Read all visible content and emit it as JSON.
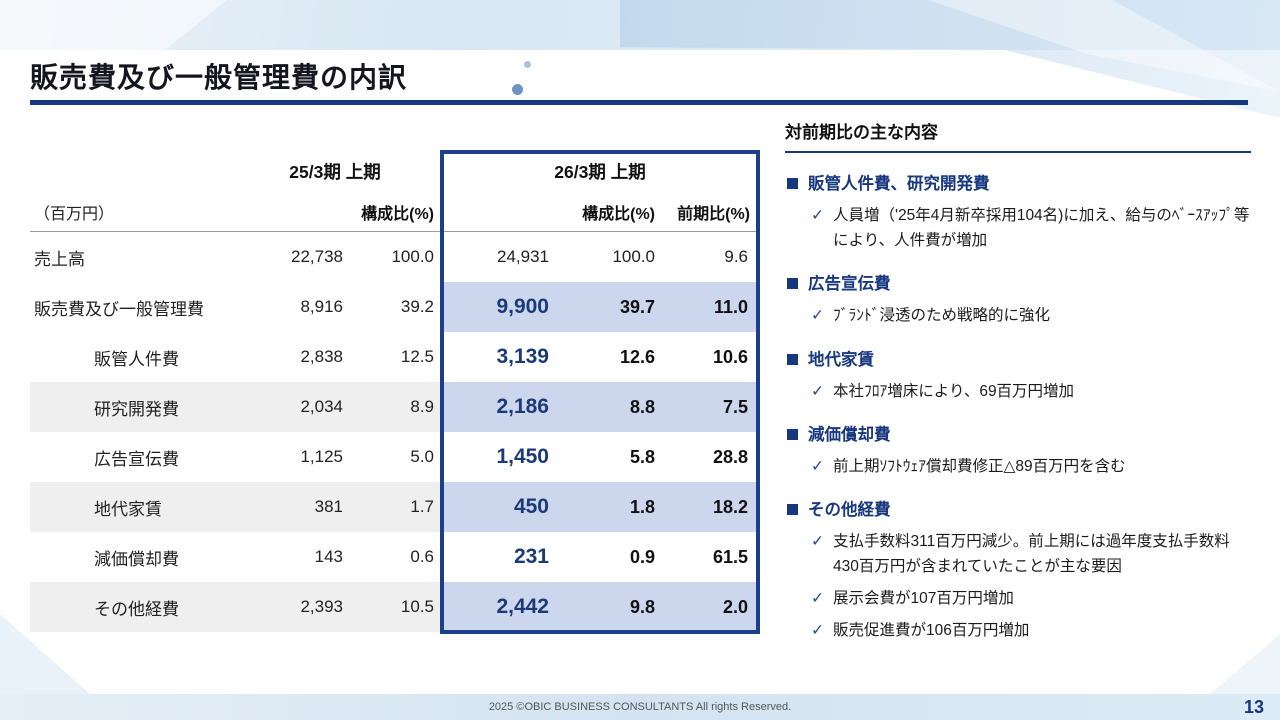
{
  "slide": {
    "title": "販売費及び一般管理費の内訳",
    "page_number": "13",
    "footer": "2025 ©OBIC BUSINESS CONSULTANTS All rights Reserved."
  },
  "colors": {
    "accent_navy": "#17377e",
    "box_border": "#1d3f8a",
    "highlight_blue": "#ccd6ec",
    "shade_gray": "#efefef"
  },
  "icons": {
    "check": "✓"
  },
  "table": {
    "unit_label": "（百万円）",
    "groups": {
      "prev": "25/3期 上期",
      "curr": "26/3期 上期"
    },
    "headers": {
      "comp_prev": "構成比(%)",
      "comp_curr": "構成比(%)",
      "yoy": "前期比(%)"
    },
    "rows": [
      {
        "label": "売上高",
        "prev": "22,738",
        "prev_comp": "100.0",
        "curr": "24,931",
        "curr_comp": "100.0",
        "yoy": "9.6"
      },
      {
        "label": "販売費及び一般管理費",
        "prev": "8,916",
        "prev_comp": "39.2",
        "curr": "9,900",
        "curr_comp": "39.7",
        "yoy": "11.0"
      },
      {
        "label": "販管人件費",
        "prev": "2,838",
        "prev_comp": "12.5",
        "curr": "3,139",
        "curr_comp": "12.6",
        "yoy": "10.6"
      },
      {
        "label": "研究開発費",
        "prev": "2,034",
        "prev_comp": "8.9",
        "curr": "2,186",
        "curr_comp": "8.8",
        "yoy": "7.5"
      },
      {
        "label": "広告宣伝費",
        "prev": "1,125",
        "prev_comp": "5.0",
        "curr": "1,450",
        "curr_comp": "5.8",
        "yoy": "28.8"
      },
      {
        "label": "地代家賃",
        "prev": "381",
        "prev_comp": "1.7",
        "curr": "450",
        "curr_comp": "1.8",
        "yoy": "18.2"
      },
      {
        "label": "減価償却費",
        "prev": "143",
        "prev_comp": "0.6",
        "curr": "231",
        "curr_comp": "0.9",
        "yoy": "61.5"
      },
      {
        "label": "その他経費",
        "prev": "2,393",
        "prev_comp": "10.5",
        "curr": "2,442",
        "curr_comp": "9.8",
        "yoy": "2.0"
      }
    ]
  },
  "notes": {
    "title": "対前期比の主な内容",
    "items": [
      {
        "heading": "販管人件費、研究開発費",
        "points": [
          "人員増（'25年4月新卒採用104名)に加え、給与のﾍﾞｰｽｱｯﾌﾟ等により、人件費が増加"
        ]
      },
      {
        "heading": "広告宣伝費",
        "points": [
          "ﾌﾞﾗﾝﾄﾞ浸透のため戦略的に強化"
        ]
      },
      {
        "heading": "地代家賃",
        "points": [
          "本社ﾌﾛｱ増床により、69百万円増加"
        ]
      },
      {
        "heading": "減価償却費",
        "points": [
          "前上期ｿﾌﾄｳｪｱ償却費修正△89百万円を含む"
        ]
      },
      {
        "heading": "その他経費",
        "points": [
          "支払手数料311百万円減少。前上期には過年度支払手数料430百万円が含まれていたことが主な要因",
          "展示会費が107百万円増加",
          "販売促進費が106百万円増加"
        ]
      }
    ]
  }
}
